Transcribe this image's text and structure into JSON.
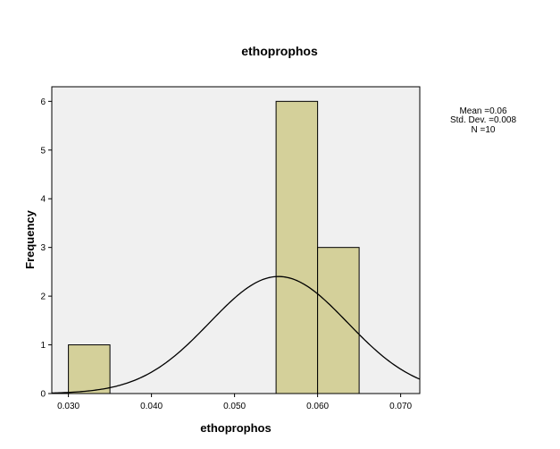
{
  "chart_data": {
    "type": "bar",
    "title": "ethoprophos",
    "xlabel": "ethoprophos",
    "ylabel": "Frequency",
    "xlim": [
      0.028,
      0.0723
    ],
    "ylim": [
      0,
      6.3
    ],
    "bins": [
      {
        "start": 0.03,
        "end": 0.035,
        "count": 1
      },
      {
        "start": 0.055,
        "end": 0.06,
        "count": 6
      },
      {
        "start": 0.06,
        "end": 0.065,
        "count": 3
      }
    ],
    "x_ticks": [
      {
        "value": 0.03,
        "label": "0.030"
      },
      {
        "value": 0.04,
        "label": "0.040"
      },
      {
        "value": 0.05,
        "label": "0.050"
      },
      {
        "value": 0.06,
        "label": "0.060"
      },
      {
        "value": 0.07,
        "label": "0.070"
      }
    ],
    "y_ticks": [
      {
        "value": 0,
        "label": "0"
      },
      {
        "value": 1,
        "label": "1"
      },
      {
        "value": 2,
        "label": "2"
      },
      {
        "value": 3,
        "label": "3"
      },
      {
        "value": 4,
        "label": "4"
      },
      {
        "value": 5,
        "label": "5"
      },
      {
        "value": 6,
        "label": "6"
      }
    ],
    "normal_curve": {
      "mean": 0.0553,
      "std_dev": 0.0083,
      "n": 10,
      "bin_width": 0.005
    },
    "stats": [
      "Mean =0.06",
      "Std. Dev. =0.008",
      "N =10"
    ],
    "grid": false,
    "colors": {
      "bar_fill": "#d4d09a",
      "bar_stroke": "#000000",
      "plot_bg": "#f0f0f0",
      "curve": "#000000"
    }
  }
}
